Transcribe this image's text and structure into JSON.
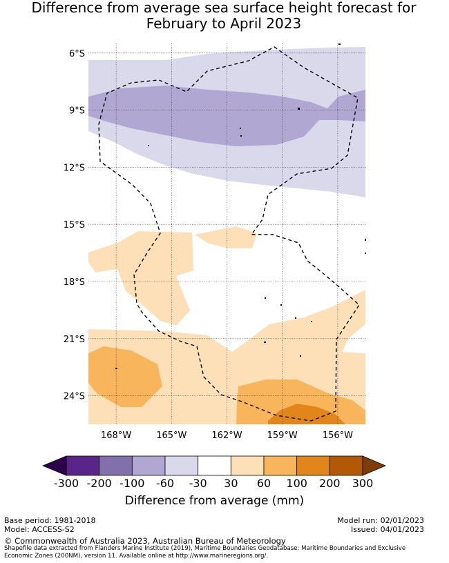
{
  "title": {
    "line1": "Difference from average sea surface height forecast for",
    "line2": "February to April 2023"
  },
  "chart_data": {
    "type": "heatmap",
    "title": "Difference from average sea surface height forecast for February to April 2023",
    "xlabel": "",
    "ylabel": "",
    "xlim": [
      -169.5,
      -154.5
    ],
    "ylim": [
      -25.5,
      -5.5
    ],
    "x_ticks": [
      {
        "value": -168,
        "label": "168°W"
      },
      {
        "value": -165,
        "label": "165°W"
      },
      {
        "value": -162,
        "label": "162°W"
      },
      {
        "value": -159,
        "label": "159°W"
      },
      {
        "value": -156,
        "label": "156°W"
      }
    ],
    "y_ticks": [
      {
        "value": -6,
        "label": "6°S"
      },
      {
        "value": -9,
        "label": "9°S"
      },
      {
        "value": -12,
        "label": "12°S"
      },
      {
        "value": -15,
        "label": "15°S"
      },
      {
        "value": -18,
        "label": "18°S"
      },
      {
        "value": -21,
        "label": "21°S"
      },
      {
        "value": -24,
        "label": "24°S"
      }
    ],
    "grid": true,
    "eez_boundary": "dashed black line",
    "colorbar": {
      "label": "Difference from average (mm)",
      "tick_labels": [
        "-300",
        "-200",
        "-100",
        "-60",
        "-30",
        "30",
        "60",
        "100",
        "200",
        "300"
      ],
      "bins": [
        {
          "range": [
            -300,
            -200
          ],
          "color": "#5a2588"
        },
        {
          "range": [
            -200,
            -100
          ],
          "color": "#8270ad"
        },
        {
          "range": [
            -100,
            -60
          ],
          "color": "#b0a7d3"
        },
        {
          "range": [
            -60,
            -30
          ],
          "color": "#d9d9eb"
        },
        {
          "range": [
            -30,
            30
          ],
          "color": "#ffffff"
        },
        {
          "range": [
            30,
            60
          ],
          "color": "#fde0b8"
        },
        {
          "range": [
            60,
            100
          ],
          "color": "#f9b55c"
        },
        {
          "range": [
            100,
            200
          ],
          "color": "#e1861b"
        },
        {
          "range": [
            200,
            300
          ],
          "color": "#b35806"
        }
      ],
      "under_color": "#2d004b",
      "over_color": "#7f3b08"
    }
  },
  "footer": {
    "base_period": "Base period: 1981-2018",
    "model": "Model: ACCESS-S2",
    "model_run": "Model run: 02/01/2023",
    "issued": "Issued: 04/01/2023",
    "copyright": "© Commonwealth of Australia 2023, Australian Bureau of Meteorology",
    "shapefile": "Shapefile data extracted from Flanders Marine Institute (2019), Maritime Boundaries Geodatabase: Maritime Boundaries and Exclusive Economic Zones (200NM), version 11. Available online at http://www.marineregions.org/."
  }
}
